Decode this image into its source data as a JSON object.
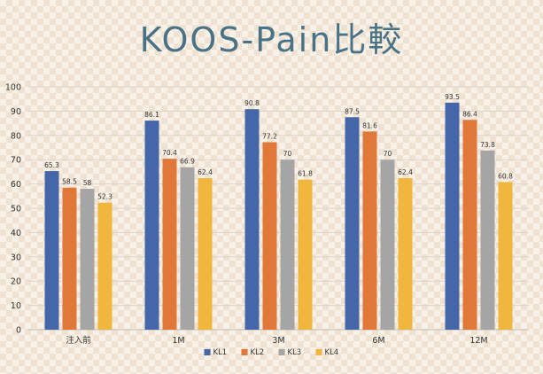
{
  "chart_data": {
    "type": "bar",
    "title": "KOOS-Pain比較",
    "categories": [
      "注入前",
      "1M",
      "3M",
      "6M",
      "12M"
    ],
    "series": [
      {
        "name": "KL1",
        "color": "#4566a8",
        "values": [
          65.3,
          86.1,
          90.8,
          87.5,
          93.5
        ]
      },
      {
        "name": "KL2",
        "color": "#e0783a",
        "values": [
          58.5,
          70.4,
          77.2,
          81.6,
          86.4
        ]
      },
      {
        "name": "KL3",
        "color": "#a5a5a5",
        "values": [
          58,
          66.9,
          70,
          70,
          73.8
        ]
      },
      {
        "name": "KL4",
        "color": "#f1b63e",
        "values": [
          52.3,
          62.4,
          61.8,
          62.4,
          60.8
        ]
      }
    ],
    "ylim": [
      0,
      100
    ],
    "yticks": [
      0,
      10,
      20,
      30,
      40,
      50,
      60,
      70,
      80,
      90,
      100
    ],
    "grid": true,
    "legend": "bottom"
  }
}
